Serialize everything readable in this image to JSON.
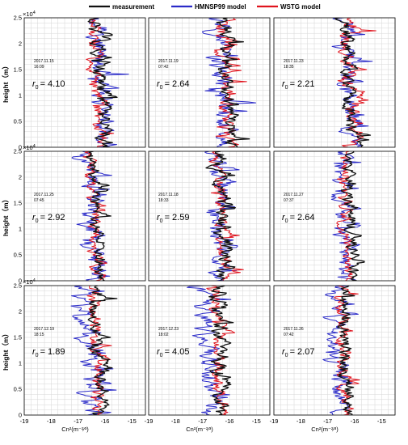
{
  "legend": [
    {
      "name": "measurement",
      "color": "#111111"
    },
    {
      "name": "HMNSP99 model",
      "color": "#2a2ac8"
    },
    {
      "name": "WSTG model",
      "color": "#e0141e"
    }
  ],
  "ylabel": "height（m）",
  "y_exponent": "×10",
  "y_exponent_power": "4",
  "xlabel": "Cn²(m⁻²⁄³)",
  "chart_data": {
    "type": "line",
    "layout": "3x3 small multiples, shared axes",
    "xlabel": "Cn²(m⁻²⁄³)",
    "ylabel": "height（m）",
    "xlim": [
      -19,
      -14.5
    ],
    "xticks": [
      "-19",
      "-18",
      "-17",
      "-16",
      "-15"
    ],
    "ylim": [
      0,
      25000
    ],
    "yticks": [
      "0",
      "0.5",
      "1",
      "1.5",
      "2",
      "2.5"
    ],
    "y_scale_note": "×10⁴",
    "grid": true,
    "legend_position": "top",
    "series_names": [
      "measurement",
      "HMNSP99 model",
      "WSTG model"
    ],
    "panels": [
      {
        "date": "2017.11.15",
        "time": "16:09",
        "r0_label": "r",
        "r0_sub": "0",
        "r0_value": "= 4.10",
        "center": [
          -16.0,
          -16.0,
          -16.2
        ],
        "amp": [
          0.55,
          0.75,
          0.5
        ],
        "seed": 11
      },
      {
        "date": "2017.11.19",
        "time": "07:42",
        "r0_label": "r",
        "r0_sub": "0",
        "r0_value": "= 2.64",
        "center": [
          -15.9,
          -16.2,
          -16.0
        ],
        "amp": [
          0.5,
          0.8,
          0.55
        ],
        "seed": 23
      },
      {
        "date": "2017.11.23",
        "time": "18:35",
        "r0_label": "r",
        "r0_sub": "0",
        "r0_value": "= 2.21",
        "center": [
          -16.1,
          -16.1,
          -16.0
        ],
        "amp": [
          0.5,
          0.7,
          0.65
        ],
        "seed": 37
      },
      {
        "date": "2017.11.25",
        "time": "07:45",
        "r0_label": "r",
        "r0_sub": "0",
        "r0_value": "= 2.92",
        "center": [
          -16.2,
          -16.4,
          -16.3
        ],
        "amp": [
          0.45,
          0.75,
          0.45
        ],
        "seed": 41
      },
      {
        "date": "2017.11.18",
        "time": "18:33",
        "r0_label": "r",
        "r0_sub": "0",
        "r0_value": "= 2.59",
        "center": [
          -16.1,
          -16.3,
          -16.2
        ],
        "amp": [
          0.55,
          0.75,
          0.45
        ],
        "seed": 53
      },
      {
        "date": "2017.11.27",
        "time": "07:37",
        "r0_label": "r",
        "r0_sub": "0",
        "r0_value": "= 2.64",
        "center": [
          -16.0,
          -16.3,
          -16.2
        ],
        "amp": [
          0.45,
          0.7,
          0.45
        ],
        "seed": 67
      },
      {
        "date": "2017.12.19",
        "time": "18:15",
        "r0_label": "r",
        "r0_sub": "0",
        "r0_value": "= 1.89",
        "center": [
          -16.1,
          -16.5,
          -16.2
        ],
        "amp": [
          0.5,
          0.75,
          0.45
        ],
        "seed": 71
      },
      {
        "date": "2017.12.23",
        "time": "18:02",
        "r0_label": "r",
        "r0_sub": "0",
        "r0_value": "= 4.05",
        "center": [
          -16.2,
          -16.6,
          -16.3
        ],
        "amp": [
          0.55,
          0.8,
          0.5
        ],
        "seed": 83
      },
      {
        "date": "2017.11.26",
        "time": "07:42",
        "r0_label": "r",
        "r0_sub": "0",
        "r0_value": "= 2.07",
        "center": [
          -16.2,
          -16.5,
          -16.3
        ],
        "amp": [
          0.45,
          0.7,
          0.45
        ],
        "seed": 97
      }
    ]
  }
}
